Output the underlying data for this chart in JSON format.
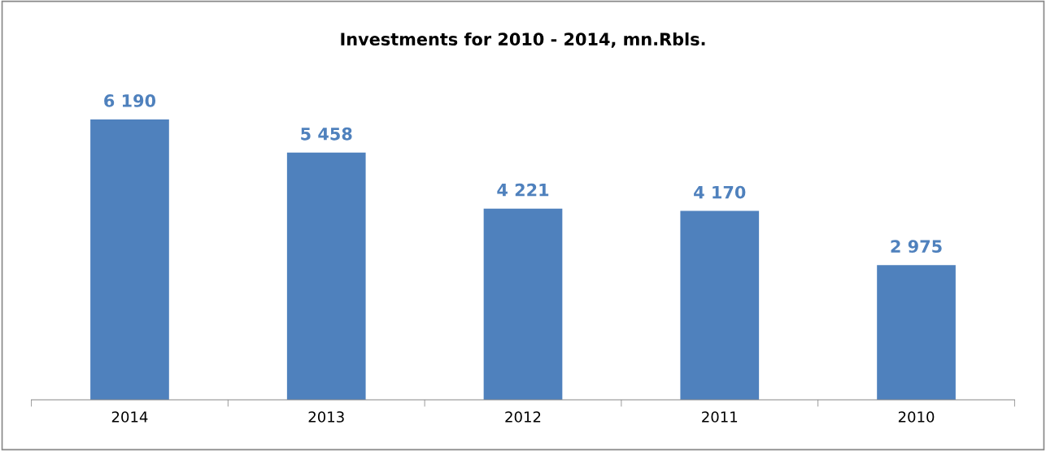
{
  "chart_data": {
    "type": "bar",
    "title": "Investments for 2010 - 2014, mn.Rbls.",
    "categories": [
      "2014",
      "2013",
      "2012",
      "2011",
      "2010"
    ],
    "values": [
      6190,
      5458,
      4221,
      4170,
      2975
    ],
    "value_labels": [
      "6 190",
      "5 458",
      "4 221",
      "4 170",
      "2 975"
    ],
    "color": "#4f81bd",
    "tick_labels": "x",
    "grid": false,
    "legend": false
  }
}
